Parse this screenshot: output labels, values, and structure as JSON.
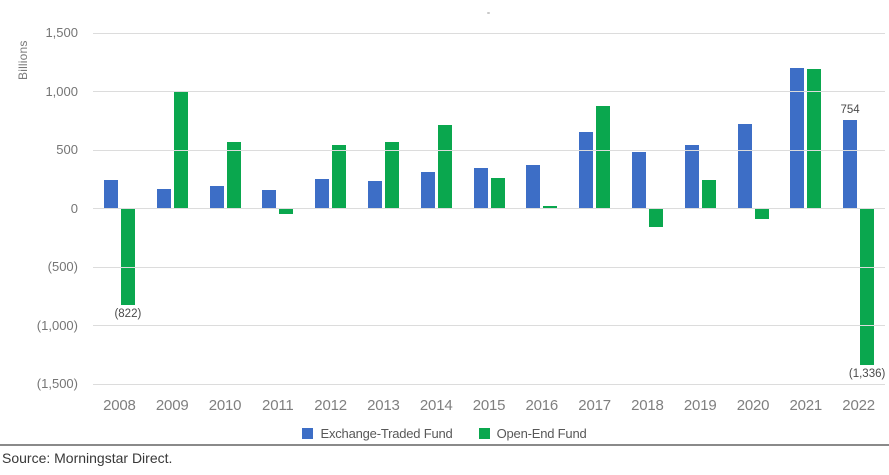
{
  "chart_data": {
    "type": "bar",
    "title": "",
    "ylabel": "Billions",
    "xlabel": "",
    "ylim": [
      -1500,
      1500
    ],
    "grid": true,
    "legend_position": "bottom",
    "yticks": [
      1500,
      1000,
      500,
      0,
      -500,
      -1000,
      -1500
    ],
    "ytick_labels": [
      "1,500",
      "1,000",
      "500",
      "0",
      "(500)",
      "(1,000)",
      "(1,500)"
    ],
    "categories": [
      "2008",
      "2009",
      "2010",
      "2011",
      "2012",
      "2013",
      "2014",
      "2015",
      "2016",
      "2017",
      "2018",
      "2019",
      "2020",
      "2021",
      "2022"
    ],
    "series": [
      {
        "name": "Exchange-Traded Fund",
        "color": "#3d6ec6",
        "values": [
          240,
          170,
          190,
          155,
          250,
          235,
          315,
          345,
          375,
          650,
          480,
          540,
          720,
          1200,
          754
        ]
      },
      {
        "name": "Open-End Fund",
        "color": "#0aa74e",
        "values": [
          -822,
          1005,
          570,
          -45,
          545,
          570,
          715,
          260,
          25,
          880,
          -155,
          245,
          -90,
          1195,
          -1336
        ]
      }
    ],
    "value_labels": [
      {
        "series": 1,
        "category": "2008",
        "text": "(822)"
      },
      {
        "series": 0,
        "category": "2022",
        "text": "754"
      },
      {
        "series": 1,
        "category": "2022",
        "text": "(1,336)"
      }
    ]
  },
  "colors": {
    "etf_blue": "#3d6ec6",
    "oef_green": "#0aa74e",
    "gridline": "#dcdcdc"
  },
  "footer": {
    "source": "Source: Morningstar Direct."
  }
}
